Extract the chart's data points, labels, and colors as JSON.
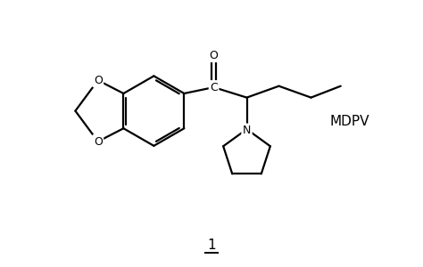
{
  "background_color": "#ffffff",
  "line_color": "#000000",
  "line_width": 1.6,
  "label_1": "1",
  "label_mdpv": "MDPV",
  "label_O_top": "O",
  "label_C": "C",
  "label_N": "N",
  "label_O1": "O",
  "label_O2": "O",
  "figsize": [
    4.74,
    3.0
  ],
  "dpi": 100
}
